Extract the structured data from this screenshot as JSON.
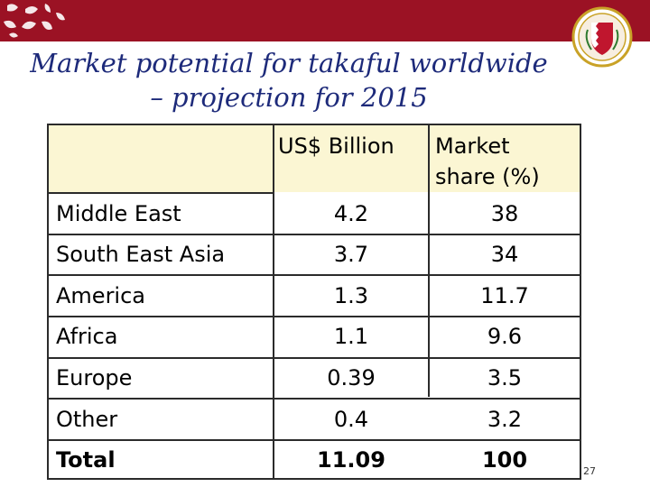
{
  "slide": {
    "title_line1": "Market potential for takaful worldwide",
    "title_line2": "– projection for 2015",
    "page_number": "27"
  },
  "table": {
    "headers": {
      "col1": "US$ Billion",
      "col2_line1": "Market",
      "col2_line2": "share (%)"
    },
    "rows": [
      {
        "region": "Middle East",
        "usd_billion": "4.2",
        "share": "38"
      },
      {
        "region": "South East Asia",
        "usd_billion": "3.7",
        "share": "34"
      },
      {
        "region": "America",
        "usd_billion": "1.3",
        "share": "11.7"
      },
      {
        "region": "Africa",
        "usd_billion": "1.1",
        "share": "9.6"
      },
      {
        "region": "Europe",
        "usd_billion": "0.39",
        "share": "3.5"
      },
      {
        "region": "Other",
        "usd_billion": "0.4",
        "share": "3.2"
      },
      {
        "region": "Total",
        "usd_billion": "11.09",
        "share": "100"
      }
    ]
  },
  "colors": {
    "banner": "#9b1224",
    "title": "#1d2a7a",
    "header_fill": "#fbf6d3"
  },
  "icons": {
    "banner_art": "ornament-pattern-icon",
    "seal": "emblem-seal-icon"
  }
}
